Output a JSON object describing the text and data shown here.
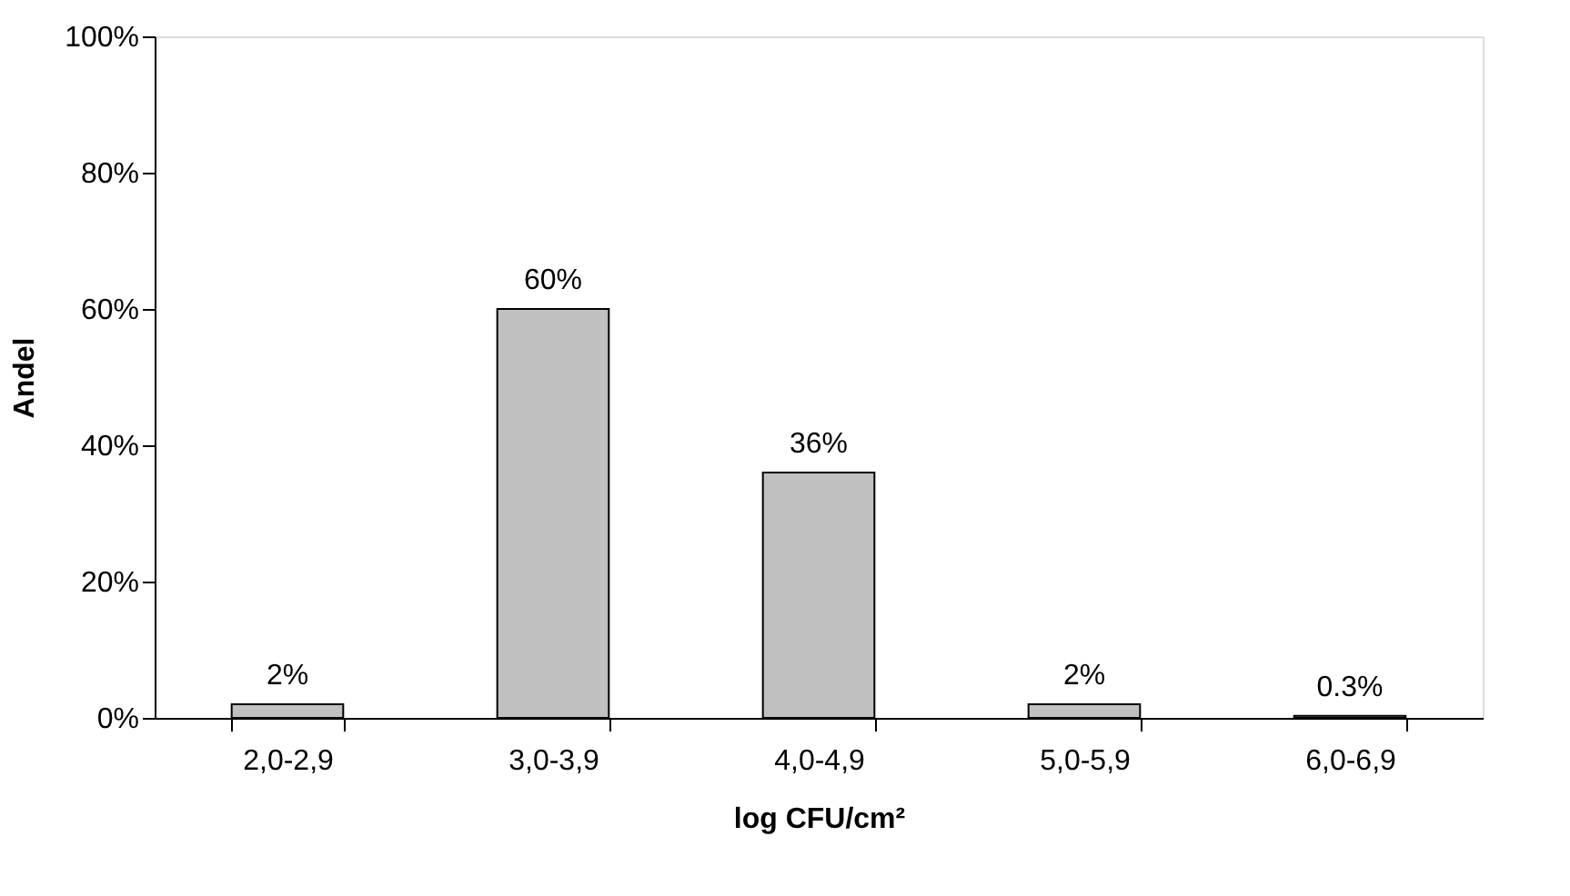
{
  "chart_data": {
    "type": "bar",
    "xlabel": "log CFU/cm²",
    "ylabel": "Andel",
    "categories": [
      "2,0-2,9",
      "3,0-3,9",
      "4,0-4,9",
      "5,0-5,9",
      "6,0-6,9"
    ],
    "values": [
      2,
      60,
      36,
      2,
      0.3
    ],
    "value_labels": [
      "2%",
      "60%",
      "36%",
      "2%",
      "0.3%"
    ],
    "color": "#c0c0c0",
    "ylim": [
      0,
      100
    ],
    "yticks": [
      {
        "value": 0,
        "label": "0%"
      },
      {
        "value": 20,
        "label": "20%"
      },
      {
        "value": 40,
        "label": "40%"
      },
      {
        "value": 60,
        "label": "60%"
      },
      {
        "value": 80,
        "label": "80%"
      },
      {
        "value": 100,
        "label": "100%"
      }
    ],
    "grid": false
  }
}
